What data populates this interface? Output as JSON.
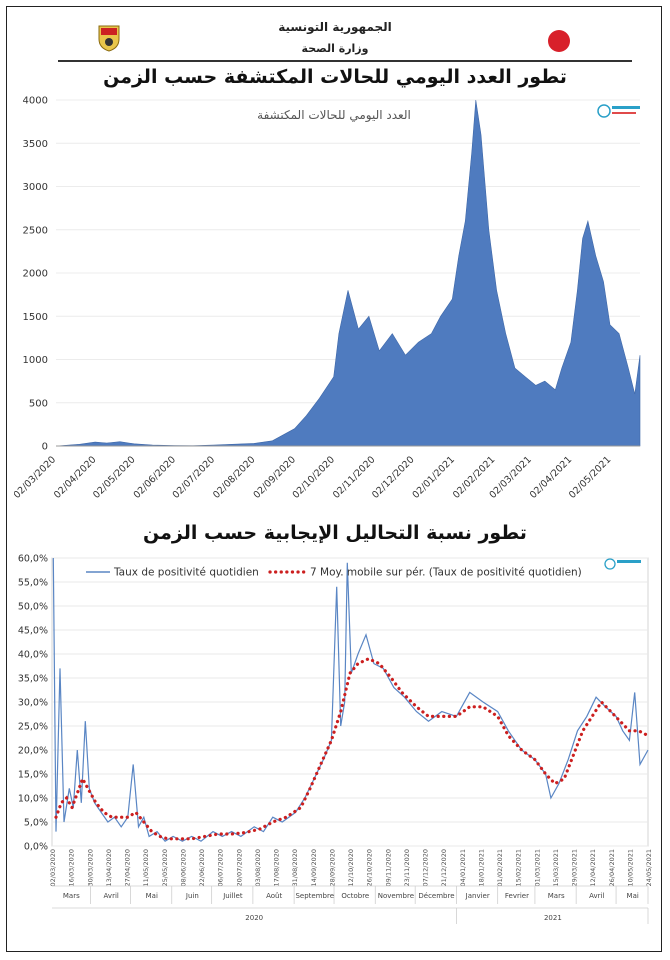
{
  "header": {
    "republic": "الجمهورية التونسية",
    "ministry": "وزارة الصحة"
  },
  "colors": {
    "area": "#4f7bbf",
    "line": "#5a86c4",
    "moving_avg": "#cc1f1f",
    "axis": "#999999"
  },
  "chart_data": [
    {
      "type": "area",
      "title": "تطور العدد اليومي للحالات المكتشفة حسب الزمن",
      "inner_label": "العدد اليومي للحالات المكتشفة",
      "ylim": [
        0,
        4000
      ],
      "yticks": [
        0,
        500,
        1000,
        1500,
        2000,
        2500,
        3000,
        3500,
        4000
      ],
      "xticks": [
        "02/03/2020",
        "02/04/2020",
        "02/05/2020",
        "02/06/2020",
        "02/07/2020",
        "02/08/2020",
        "02/09/2020",
        "02/10/2020",
        "02/11/2020",
        "02/12/2020",
        "02/01/2021",
        "02/02/2021",
        "02/03/2021",
        "02/04/2021",
        "02/05/2021"
      ],
      "x_range": [
        "2020-03-02",
        "2021-05-24"
      ],
      "series": [
        {
          "points": [
            [
              "2020-03-02",
              0
            ],
            [
              "2020-03-20",
              20
            ],
            [
              "2020-04-01",
              45
            ],
            [
              "2020-04-10",
              35
            ],
            [
              "2020-04-20",
              50
            ],
            [
              "2020-05-01",
              25
            ],
            [
              "2020-05-15",
              10
            ],
            [
              "2020-06-01",
              5
            ],
            [
              "2020-06-15",
              3
            ],
            [
              "2020-07-01",
              10
            ],
            [
              "2020-07-15",
              20
            ],
            [
              "2020-08-01",
              30
            ],
            [
              "2020-08-15",
              60
            ],
            [
              "2020-09-01",
              200
            ],
            [
              "2020-09-10",
              350
            ],
            [
              "2020-09-20",
              550
            ],
            [
              "2020-10-01",
              800
            ],
            [
              "2020-10-05",
              1300
            ],
            [
              "2020-10-12",
              1800
            ],
            [
              "2020-10-20",
              1350
            ],
            [
              "2020-10-28",
              1500
            ],
            [
              "2020-11-05",
              1100
            ],
            [
              "2020-11-15",
              1300
            ],
            [
              "2020-11-25",
              1050
            ],
            [
              "2020-12-05",
              1200
            ],
            [
              "2020-12-15",
              1300
            ],
            [
              "2020-12-22",
              1500
            ],
            [
              "2020-12-31",
              1700
            ],
            [
              "2021-01-05",
              2200
            ],
            [
              "2021-01-10",
              2600
            ],
            [
              "2021-01-15",
              3400
            ],
            [
              "2021-01-18",
              4000
            ],
            [
              "2021-01-22",
              3600
            ],
            [
              "2021-01-28",
              2500
            ],
            [
              "2021-02-03",
              1800
            ],
            [
              "2021-02-10",
              1300
            ],
            [
              "2021-02-17",
              900
            ],
            [
              "2021-02-25",
              800
            ],
            [
              "2021-03-05",
              700
            ],
            [
              "2021-03-12",
              750
            ],
            [
              "2021-03-20",
              650
            ],
            [
              "2021-03-25",
              900
            ],
            [
              "2021-04-01",
              1200
            ],
            [
              "2021-04-06",
              1800
            ],
            [
              "2021-04-10",
              2400
            ],
            [
              "2021-04-14",
              2600
            ],
            [
              "2021-04-20",
              2200
            ],
            [
              "2021-04-26",
              1900
            ],
            [
              "2021-05-01",
              1400
            ],
            [
              "2021-05-08",
              1300
            ],
            [
              "2021-05-15",
              900
            ],
            [
              "2021-05-20",
              600
            ],
            [
              "2021-05-24",
              1050
            ]
          ]
        }
      ]
    },
    {
      "type": "line",
      "title": "تطور نسبة التحاليل الإيجابية حسب الزمن",
      "ylim": [
        0,
        60
      ],
      "yticks": [
        "0,0%",
        "5,0%",
        "10,0%",
        "15,0%",
        "20,0%",
        "25,0%",
        "30,0%",
        "35,0%",
        "40,0%",
        "45,0%",
        "50,0%",
        "55,0%",
        "60,0%"
      ],
      "x_range": [
        "2020-03-02",
        "2021-05-24"
      ],
      "xticks": [
        "02/03/2020",
        "16/03/2020",
        "30/03/2020",
        "13/04/2020",
        "27/04/2020",
        "11/05/2020",
        "25/05/2020",
        "08/06/2020",
        "22/06/2020",
        "06/07/2020",
        "20/07/2020",
        "03/08/2020",
        "17/08/2020",
        "31/08/2020",
        "14/09/2020",
        "28/09/2020",
        "12/10/2020",
        "26/10/2020",
        "09/11/2020",
        "23/11/2020",
        "07/12/2020",
        "21/12/2020",
        "04/01/2021",
        "18/01/2021",
        "01/02/2021",
        "15/02/2021",
        "01/03/2021",
        "15/03/2021",
        "29/03/2021",
        "12/04/2021",
        "26/04/2021",
        "10/05/2021",
        "24/05/2021"
      ],
      "months": [
        {
          "name": "Mars",
          "start": "2020-03-01",
          "end": "2020-03-31"
        },
        {
          "name": "Avril",
          "start": "2020-04-01",
          "end": "2020-04-30"
        },
        {
          "name": "Mai",
          "start": "2020-05-01",
          "end": "2020-05-31"
        },
        {
          "name": "Juin",
          "start": "2020-06-01",
          "end": "2020-06-30"
        },
        {
          "name": "Juillet",
          "start": "2020-07-01",
          "end": "2020-07-31"
        },
        {
          "name": "Août",
          "start": "2020-08-01",
          "end": "2020-08-31"
        },
        {
          "name": "Septembre",
          "start": "2020-09-01",
          "end": "2020-09-30"
        },
        {
          "name": "Octobre",
          "start": "2020-10-01",
          "end": "2020-10-31"
        },
        {
          "name": "Novembre",
          "start": "2020-11-01",
          "end": "2020-11-30"
        },
        {
          "name": "Décembre",
          "start": "2020-12-01",
          "end": "2020-12-31"
        },
        {
          "name": "Janvier",
          "start": "2021-01-01",
          "end": "2021-01-31"
        },
        {
          "name": "Fevrier",
          "start": "2021-02-01",
          "end": "2021-02-28"
        },
        {
          "name": "Mars",
          "start": "2021-03-01",
          "end": "2021-03-31"
        },
        {
          "name": "Avril",
          "start": "2021-04-01",
          "end": "2021-04-30"
        },
        {
          "name": "Mai",
          "start": "2021-05-01",
          "end": "2021-05-31"
        }
      ],
      "years": [
        {
          "name": "2020",
          "start": "2020-03-01",
          "end": "2020-12-31"
        },
        {
          "name": "2021",
          "start": "2021-01-01",
          "end": "2021-05-31"
        }
      ],
      "legend": [
        "Taux de positivité quotidien",
        "7 Moy. mobile sur pér. (Taux de positivité quotidien)"
      ],
      "series": [
        {
          "name": "Taux de positivité quotidien",
          "points": [
            [
              "2020-03-03",
              60
            ],
            [
              "2020-03-05",
              3
            ],
            [
              "2020-03-08",
              37
            ],
            [
              "2020-03-11",
              5
            ],
            [
              "2020-03-15",
              12
            ],
            [
              "2020-03-18",
              8
            ],
            [
              "2020-03-21",
              20
            ],
            [
              "2020-03-24",
              9
            ],
            [
              "2020-03-27",
              26
            ],
            [
              "2020-03-30",
              12
            ],
            [
              "2020-04-03",
              9
            ],
            [
              "2020-04-08",
              7
            ],
            [
              "2020-04-13",
              5
            ],
            [
              "2020-04-18",
              6
            ],
            [
              "2020-04-23",
              4
            ],
            [
              "2020-04-28",
              6
            ],
            [
              "2020-05-02",
              17
            ],
            [
              "2020-05-06",
              4
            ],
            [
              "2020-05-10",
              6
            ],
            [
              "2020-05-14",
              2
            ],
            [
              "2020-05-20",
              3
            ],
            [
              "2020-05-26",
              1
            ],
            [
              "2020-06-01",
              2
            ],
            [
              "2020-06-08",
              1
            ],
            [
              "2020-06-15",
              2
            ],
            [
              "2020-06-22",
              1
            ],
            [
              "2020-07-01",
              3
            ],
            [
              "2020-07-08",
              2
            ],
            [
              "2020-07-15",
              3
            ],
            [
              "2020-07-22",
              2
            ],
            [
              "2020-08-01",
              4
            ],
            [
              "2020-08-08",
              3
            ],
            [
              "2020-08-15",
              6
            ],
            [
              "2020-08-22",
              5
            ],
            [
              "2020-09-01",
              7
            ],
            [
              "2020-09-08",
              10
            ],
            [
              "2020-09-15",
              14
            ],
            [
              "2020-09-22",
              18
            ],
            [
              "2020-09-28",
              22
            ],
            [
              "2020-10-02",
              54
            ],
            [
              "2020-10-05",
              25
            ],
            [
              "2020-10-08",
              30
            ],
            [
              "2020-10-10",
              59
            ],
            [
              "2020-10-13",
              36
            ],
            [
              "2020-10-18",
              40
            ],
            [
              "2020-10-24",
              44
            ],
            [
              "2020-10-30",
              38
            ],
            [
              "2020-11-06",
              37
            ],
            [
              "2020-11-14",
              33
            ],
            [
              "2020-11-22",
              31
            ],
            [
              "2020-12-01",
              28
            ],
            [
              "2020-12-10",
              26
            ],
            [
              "2020-12-20",
              28
            ],
            [
              "2020-12-31",
              27
            ],
            [
              "2021-01-10",
              32
            ],
            [
              "2021-01-20",
              30
            ],
            [
              "2021-01-31",
              28
            ],
            [
              "2021-02-08",
              24
            ],
            [
              "2021-02-18",
              20
            ],
            [
              "2021-02-28",
              18
            ],
            [
              "2021-03-08",
              15
            ],
            [
              "2021-03-12",
              10
            ],
            [
              "2021-03-18",
              13
            ],
            [
              "2021-03-25",
              18
            ],
            [
              "2021-04-01",
              24
            ],
            [
              "2021-04-08",
              27
            ],
            [
              "2021-04-15",
              31
            ],
            [
              "2021-04-22",
              29
            ],
            [
              "2021-04-30",
              27
            ],
            [
              "2021-05-05",
              24
            ],
            [
              "2021-05-10",
              22
            ],
            [
              "2021-05-14",
              32
            ],
            [
              "2021-05-18",
              17
            ],
            [
              "2021-05-24",
              20
            ]
          ]
        },
        {
          "name": "7 Moy. mobile sur pér. (Taux de positivité quotidien)",
          "points": [
            [
              "2020-03-05",
              6
            ],
            [
              "2020-03-09",
              9
            ],
            [
              "2020-03-13",
              10
            ],
            [
              "2020-03-17",
              8
            ],
            [
              "2020-03-21",
              11
            ],
            [
              "2020-03-25",
              14
            ],
            [
              "2020-03-29",
              12
            ],
            [
              "2020-04-04",
              9
            ],
            [
              "2020-04-10",
              7
            ],
            [
              "2020-04-16",
              6
            ],
            [
              "2020-04-22",
              6
            ],
            [
              "2020-04-28",
              6
            ],
            [
              "2020-05-04",
              7
            ],
            [
              "2020-05-10",
              5
            ],
            [
              "2020-05-16",
              3
            ],
            [
              "2020-05-22",
              2
            ],
            [
              "2020-05-28",
              1.5
            ],
            [
              "2020-06-05",
              1.5
            ],
            [
              "2020-06-15",
              1.5
            ],
            [
              "2020-06-25",
              2
            ],
            [
              "2020-07-05",
              2.5
            ],
            [
              "2020-07-15",
              2.5
            ],
            [
              "2020-07-25",
              2.8
            ],
            [
              "2020-08-05",
              3.5
            ],
            [
              "2020-08-15",
              5
            ],
            [
              "2020-08-25",
              6
            ],
            [
              "2020-09-05",
              8
            ],
            [
              "2020-09-12",
              12
            ],
            [
              "2020-09-20",
              17
            ],
            [
              "2020-09-28",
              22
            ],
            [
              "2020-10-05",
              28
            ],
            [
              "2020-10-12",
              36
            ],
            [
              "2020-10-18",
              38
            ],
            [
              "2020-10-26",
              39
            ],
            [
              "2020-11-03",
              38
            ],
            [
              "2020-11-12",
              35
            ],
            [
              "2020-11-20",
              32
            ],
            [
              "2020-12-01",
              29
            ],
            [
              "2020-12-10",
              27
            ],
            [
              "2020-12-20",
              27
            ],
            [
              "2020-12-31",
              27
            ],
            [
              "2021-01-10",
              29
            ],
            [
              "2021-01-20",
              29
            ],
            [
              "2021-01-31",
              27
            ],
            [
              "2021-02-08",
              23
            ],
            [
              "2021-02-18",
              20
            ],
            [
              "2021-02-28",
              18
            ],
            [
              "2021-03-08",
              15
            ],
            [
              "2021-03-15",
              13
            ],
            [
              "2021-03-22",
              14
            ],
            [
              "2021-03-29",
              19
            ],
            [
              "2021-04-05",
              24
            ],
            [
              "2021-04-12",
              27
            ],
            [
              "2021-04-19",
              30
            ],
            [
              "2021-04-26",
              28
            ],
            [
              "2021-05-03",
              26
            ],
            [
              "2021-05-10",
              24
            ],
            [
              "2021-05-17",
              24
            ],
            [
              "2021-05-24",
              23
            ]
          ]
        }
      ]
    }
  ]
}
